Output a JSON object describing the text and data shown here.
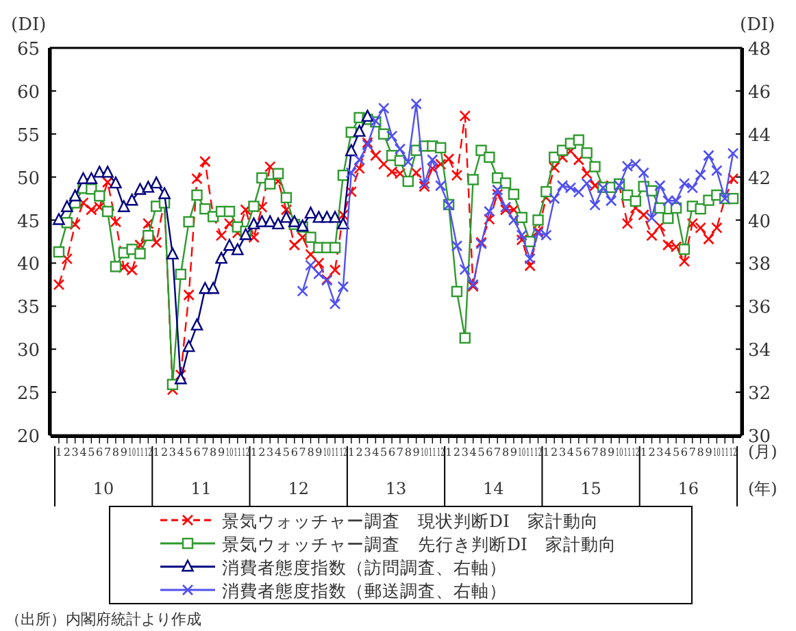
{
  "chart_data": {
    "type": "line",
    "ylabel": "(DI)",
    "y2label": "(DI)",
    "xlabel": "(月)",
    "categories": [
      "1",
      "2",
      "3",
      "4",
      "5",
      "6",
      "7",
      "8",
      "9",
      "10",
      "11",
      "12",
      "1",
      "2",
      "3",
      "4",
      "5",
      "6",
      "7",
      "8",
      "9",
      "10",
      "11",
      "12",
      "1",
      "2",
      "3",
      "4",
      "5",
      "6",
      "7",
      "8",
      "9",
      "10",
      "11",
      "12",
      "1",
      "2",
      "3",
      "4",
      "5",
      "6",
      "7",
      "8",
      "9",
      "10",
      "11",
      "12",
      "1",
      "2",
      "3",
      "4",
      "5",
      "6",
      "7",
      "8",
      "9",
      "10",
      "11",
      "12",
      "1",
      "2",
      "3",
      "4",
      "5",
      "6",
      "7",
      "8",
      "9",
      "10",
      "11",
      "12",
      "1",
      "2",
      "3",
      "4",
      "5",
      "6",
      "7",
      "8",
      "9",
      "10",
      "11",
      "12"
    ],
    "ylim": [
      20,
      65
    ],
    "yticks": [
      20,
      25,
      30,
      35,
      40,
      45,
      50,
      55,
      60,
      65
    ],
    "y2lim": [
      30,
      48
    ],
    "y2ticks": [
      30,
      32,
      34,
      36,
      38,
      40,
      42,
      44,
      46,
      48
    ],
    "legend": "bottom",
    "series": [
      {
        "name": "景気ウォッチャー調査　現状判断DI　家計動向",
        "color": "#ff0000",
        "marker": "cross",
        "line_style": "dashed",
        "values": [
          37.5,
          40.5,
          44.5,
          47.0,
          46.2,
          46.5,
          49.4,
          44.8,
          39.5,
          39.2,
          42.1,
          44.6,
          42.4,
          47.2,
          25.3,
          27.0,
          36.3,
          49.8,
          51.8,
          45.5,
          43.2,
          44.6,
          43.5,
          46.2,
          43.0,
          46.5,
          51.2,
          49.5,
          46.2,
          42.1,
          43.0,
          41.0,
          40.0,
          38.1,
          39.2,
          45.6,
          48.3,
          51.0,
          54.0,
          52.5,
          51.5,
          50.6,
          50.4,
          49.5,
          50.5,
          48.9,
          51.0,
          51.5,
          52.1,
          50.2,
          57.1,
          37.3,
          42.4,
          45.1,
          48.0,
          46.2,
          46.2,
          42.7,
          39.7,
          43.7,
          47.6,
          51.1,
          52.3,
          53.0,
          52.0,
          50.4,
          49.0,
          48.8,
          49.0,
          49.0,
          44.6,
          46.4,
          45.6,
          43.2,
          44.3,
          42.1,
          41.9,
          40.2,
          44.6,
          44.1,
          42.8,
          44.1,
          47.5,
          49.8
        ]
      },
      {
        "name": "景気ウォッチャー調査　先行き判断DI　家計動向",
        "color": "#2e9a2e",
        "marker": "square",
        "line_style": "solid",
        "values": [
          41.3,
          44.7,
          47.0,
          48.7,
          48.6,
          47.8,
          46.0,
          39.6,
          41.2,
          41.6,
          41.1,
          43.2,
          46.6,
          47.0,
          25.9,
          38.7,
          44.8,
          47.9,
          46.3,
          45.4,
          46.0,
          46.0,
          44.2,
          43.7,
          46.6,
          49.9,
          49.2,
          50.4,
          47.6,
          44.5,
          44.2,
          43.0,
          41.8,
          41.8,
          41.8,
          50.2,
          55.2,
          56.9,
          56.7,
          56.4,
          55.0,
          52.5,
          51.9,
          49.5,
          53.1,
          53.6,
          53.6,
          53.4,
          46.8,
          36.7,
          31.3,
          49.7,
          53.1,
          52.3,
          49.9,
          49.3,
          48.0,
          45.3,
          42.5,
          45.0,
          48.3,
          52.3,
          53.1,
          53.9,
          54.3,
          52.8,
          51.2,
          48.8,
          48.8,
          49.2,
          47.9,
          47.2,
          48.9,
          48.4,
          46.4,
          45.2,
          46.4,
          41.6,
          46.6,
          46.3,
          47.3,
          47.9,
          47.5,
          47.5
        ]
      },
      {
        "name": "消費者態度指数（訪問調査、右軸）",
        "color": "#000080",
        "marker": "triangle",
        "line_style": "solid",
        "axis": "y2",
        "values": [
          40.0,
          40.6,
          41.1,
          41.9,
          41.9,
          42.2,
          42.2,
          41.7,
          40.6,
          40.9,
          41.4,
          41.5,
          41.7,
          41.2,
          38.4,
          32.6,
          34.1,
          35.1,
          36.8,
          36.8,
          38.2,
          38.8,
          38.6,
          39.3,
          39.8,
          39.9,
          39.9,
          39.8,
          40.1,
          39.9,
          39.7,
          40.3,
          40.1,
          40.1,
          40.1,
          39.8,
          43.2,
          44.1,
          44.8,
          null,
          null,
          null,
          null,
          null,
          null,
          null,
          null,
          null,
          null,
          null,
          null,
          null,
          null,
          null,
          null,
          null,
          null,
          null,
          null,
          null,
          null,
          null,
          null,
          null,
          null,
          null,
          null,
          null,
          null,
          null,
          null,
          null,
          null,
          null,
          null,
          null,
          null,
          null,
          null,
          null,
          null,
          null,
          null,
          null
        ]
      },
      {
        "name": "消費者態度指数（郵送調査、右軸）",
        "color": "#5050f0",
        "marker": "cross",
        "line_style": "solid",
        "axis": "y2",
        "values": [
          null,
          null,
          null,
          null,
          null,
          null,
          null,
          null,
          null,
          null,
          null,
          null,
          null,
          null,
          null,
          null,
          null,
          null,
          null,
          null,
          null,
          null,
          null,
          null,
          null,
          null,
          null,
          null,
          null,
          null,
          36.7,
          37.9,
          37.5,
          37.2,
          36.1,
          36.9,
          42.2,
          42.8,
          43.5,
          44.6,
          45.2,
          43.9,
          43.3,
          42.7,
          45.4,
          41.7,
          42.8,
          41.6,
          40.7,
          38.8,
          37.7,
          37.0,
          38.9,
          40.4,
          41.4,
          40.6,
          40.0,
          39.3,
          38.2,
          39.4,
          39.3,
          41.0,
          41.6,
          41.5,
          41.3,
          41.7,
          40.7,
          41.5,
          40.9,
          41.6,
          42.5,
          42.6,
          42.2,
          40.1,
          41.6,
          40.9,
          40.9,
          41.7,
          41.5,
          42.1,
          43.0,
          42.3,
          41.0,
          43.1
        ]
      }
    ],
    "annotations": [
      "10",
      "11",
      "12",
      "13",
      "14",
      "15",
      "16",
      "(年)",
      "（出所）内閣府統計より作成"
    ]
  }
}
